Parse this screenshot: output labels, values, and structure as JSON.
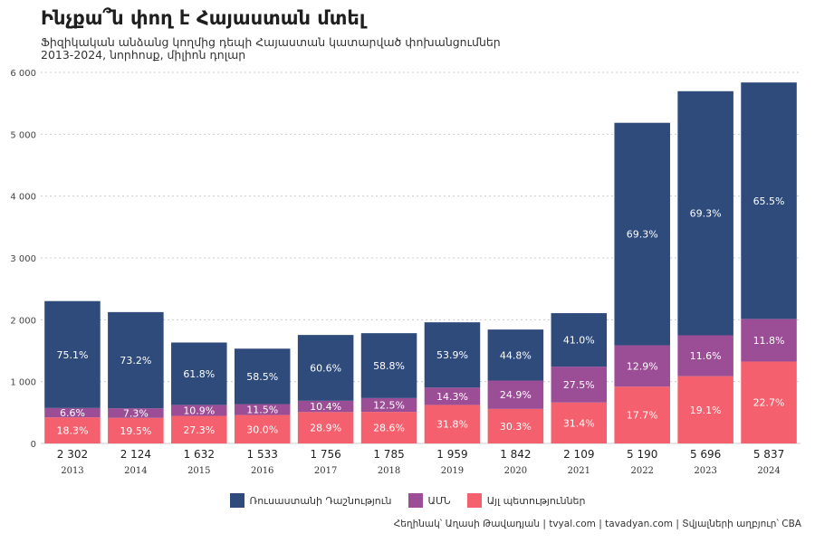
{
  "title": "Ինչքա՞ն փող է Հայաստան մտել",
  "subtitle_line1": "Ֆիզիկական անձանց կողմից դեպի Հայաստան կատարված փոխանցումներ",
  "subtitle_line2": "2013-2024, նորհոսք, միլիոն դոլար",
  "footer": "Հեղինակ՝ Աղասի Թավադյան   |   tvyal.com   |   tavadyan.com   |   Տվյալների աղբյուր՝ CBA",
  "colors": {
    "russia": "#2e4b7c",
    "usa": "#9b4e96",
    "other": "#f4606d",
    "grid": "#cccccc"
  },
  "chart_data": {
    "type": "bar",
    "stacked": true,
    "categories": [
      "2013",
      "2014",
      "2015",
      "2016",
      "2017",
      "2018",
      "2019",
      "2020",
      "2021",
      "2022",
      "2023",
      "2024"
    ],
    "totals": [
      2302,
      2124,
      1632,
      1533,
      1756,
      1785,
      1959,
      1842,
      2109,
      5190,
      5696,
      5837
    ],
    "total_labels": [
      "2 302",
      "2 124",
      "1 632",
      "1 533",
      "1 756",
      "1 785",
      "1 959",
      "1 842",
      "2 109",
      "5 190",
      "5 696",
      "5 837"
    ],
    "series": [
      {
        "name": "Այլ պետություններ",
        "key": "other",
        "shares": [
          18.3,
          19.5,
          27.3,
          30.0,
          28.9,
          28.6,
          31.8,
          30.3,
          31.4,
          17.7,
          19.1,
          22.7
        ],
        "labels": [
          "18.3%",
          "19.5%",
          "27.3%",
          "30.0%",
          "28.9%",
          "28.6%",
          "31.8%",
          "30.3%",
          "31.4%",
          "17.7%",
          "19.1%",
          "22.7%"
        ]
      },
      {
        "name": "ԱՄՆ",
        "key": "usa",
        "shares": [
          6.6,
          7.3,
          10.9,
          11.5,
          10.4,
          12.5,
          14.3,
          24.9,
          27.5,
          12.9,
          11.6,
          11.8
        ],
        "labels": [
          "6.6%",
          "7.3%",
          "10.9%",
          "11.5%",
          "10.4%",
          "12.5%",
          "14.3%",
          "24.9%",
          "27.5%",
          "12.9%",
          "11.6%",
          "11.8%"
        ]
      },
      {
        "name": "Ռուսաստանի Դաշնություն",
        "key": "russia",
        "shares": [
          75.1,
          73.2,
          61.8,
          58.5,
          60.6,
          58.8,
          53.9,
          44.8,
          41.0,
          69.3,
          69.3,
          65.5
        ],
        "labels": [
          "75.1%",
          "73.2%",
          "61.8%",
          "58.5%",
          "60.6%",
          "58.8%",
          "53.9%",
          "44.8%",
          "41.0%",
          "69.3%",
          "69.3%",
          "65.5%"
        ]
      }
    ],
    "legend_order": [
      "russia",
      "usa",
      "other"
    ],
    "ylim": [
      0,
      6000
    ],
    "yticks": [
      0,
      1000,
      2000,
      3000,
      4000,
      5000,
      6000
    ],
    "ytick_labels": [
      "0",
      "1 000",
      "2 000",
      "3 000",
      "4 000",
      "5 000",
      "6 000"
    ],
    "grid": true,
    "legend_position": "bottom"
  }
}
